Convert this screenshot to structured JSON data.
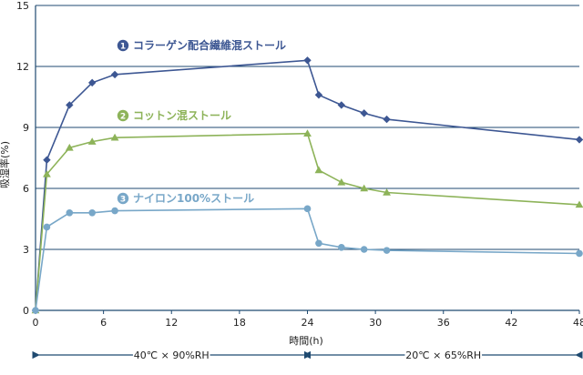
{
  "chart_data": {
    "type": "line",
    "title": "",
    "xlabel": "時間(h)",
    "ylabel": "吸湿率(%)",
    "xlim": [
      0,
      48
    ],
    "ylim": [
      0,
      15
    ],
    "xticks": [
      "0",
      "6",
      "12",
      "18",
      "24",
      "30",
      "36",
      "42",
      "48"
    ],
    "yticks": [
      "0",
      "3",
      "6",
      "9",
      "12",
      "15"
    ],
    "grid": "horizontal",
    "series": [
      {
        "name": "コラーゲン配合繊維混ストール",
        "badge": "1",
        "color": "#3d5793",
        "marker": "diamond",
        "x": [
          0,
          1,
          3,
          5,
          7,
          24,
          25,
          27,
          29,
          31,
          48
        ],
        "y": [
          0,
          7.4,
          10.1,
          11.2,
          11.6,
          12.3,
          10.6,
          10.1,
          9.7,
          9.4,
          8.4
        ]
      },
      {
        "name": "コットン混ストール",
        "badge": "2",
        "color": "#8db359",
        "marker": "triangle",
        "x": [
          0,
          1,
          3,
          5,
          7,
          24,
          25,
          27,
          29,
          31,
          48
        ],
        "y": [
          0,
          6.7,
          8.0,
          8.3,
          8.5,
          8.7,
          6.9,
          6.3,
          6.0,
          5.8,
          5.2
        ]
      },
      {
        "name": "ナイロン100%ストール",
        "badge": "3",
        "color": "#78a7c8",
        "marker": "circle",
        "x": [
          0,
          1,
          3,
          5,
          7,
          24,
          25,
          27,
          29,
          31,
          48
        ],
        "y": [
          0,
          4.1,
          4.8,
          4.8,
          4.9,
          5.0,
          3.3,
          3.1,
          3.0,
          2.95,
          2.8
        ]
      }
    ],
    "periods": [
      {
        "label": "40℃ × 90%RH",
        "from": 0,
        "to": 24
      },
      {
        "label": "20℃ × 65%RH",
        "from": 24,
        "to": 48
      }
    ]
  }
}
